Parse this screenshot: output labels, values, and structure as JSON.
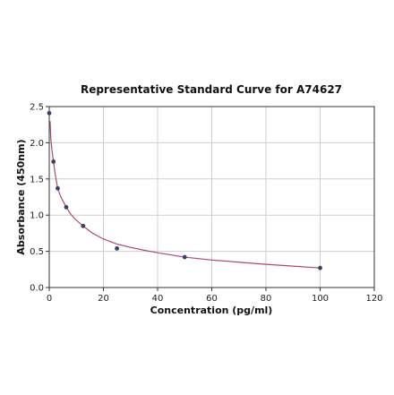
{
  "chart_data": {
    "type": "scatter",
    "title": "Representative Standard Curve for A74627",
    "xlabel": "Concentration (pg/ml)",
    "ylabel": "Absorbance (450nm)",
    "xlim": [
      0,
      120
    ],
    "ylim": [
      0,
      2.5
    ],
    "x_ticks": [
      0,
      20,
      40,
      60,
      80,
      100,
      120
    ],
    "y_ticks": [
      0.0,
      0.5,
      1.0,
      1.5,
      2.0,
      2.5
    ],
    "x_tick_labels": [
      "0",
      "20",
      "40",
      "60",
      "80",
      "100",
      "120"
    ],
    "y_tick_labels": [
      "0.0",
      "0.5",
      "1.0",
      "1.5",
      "2.0",
      "2.5"
    ],
    "grid": true,
    "points": {
      "x": [
        0,
        1.56,
        3.12,
        6.25,
        12.5,
        25,
        50,
        100
      ],
      "y": [
        2.41,
        1.74,
        1.37,
        1.11,
        0.85,
        0.54,
        0.42,
        0.27
      ]
    },
    "fit_curve": {
      "x": [
        0.3,
        0.6,
        1,
        1.56,
        2.2,
        3.12,
        4.2,
        6.25,
        8,
        10,
        12.5,
        16,
        20,
        25,
        30,
        35,
        40,
        50,
        60,
        70,
        80,
        90,
        100
      ],
      "y": [
        2.3,
        2.05,
        1.9,
        1.74,
        1.56,
        1.37,
        1.26,
        1.11,
        1.01,
        0.93,
        0.85,
        0.75,
        0.67,
        0.6,
        0.555,
        0.515,
        0.48,
        0.42,
        0.38,
        0.35,
        0.32,
        0.295,
        0.27
      ]
    },
    "colors": {
      "points": "#3b3f6b",
      "curve": "#b04870",
      "grid": "#cfcfcf",
      "axes": "#333333"
    }
  }
}
